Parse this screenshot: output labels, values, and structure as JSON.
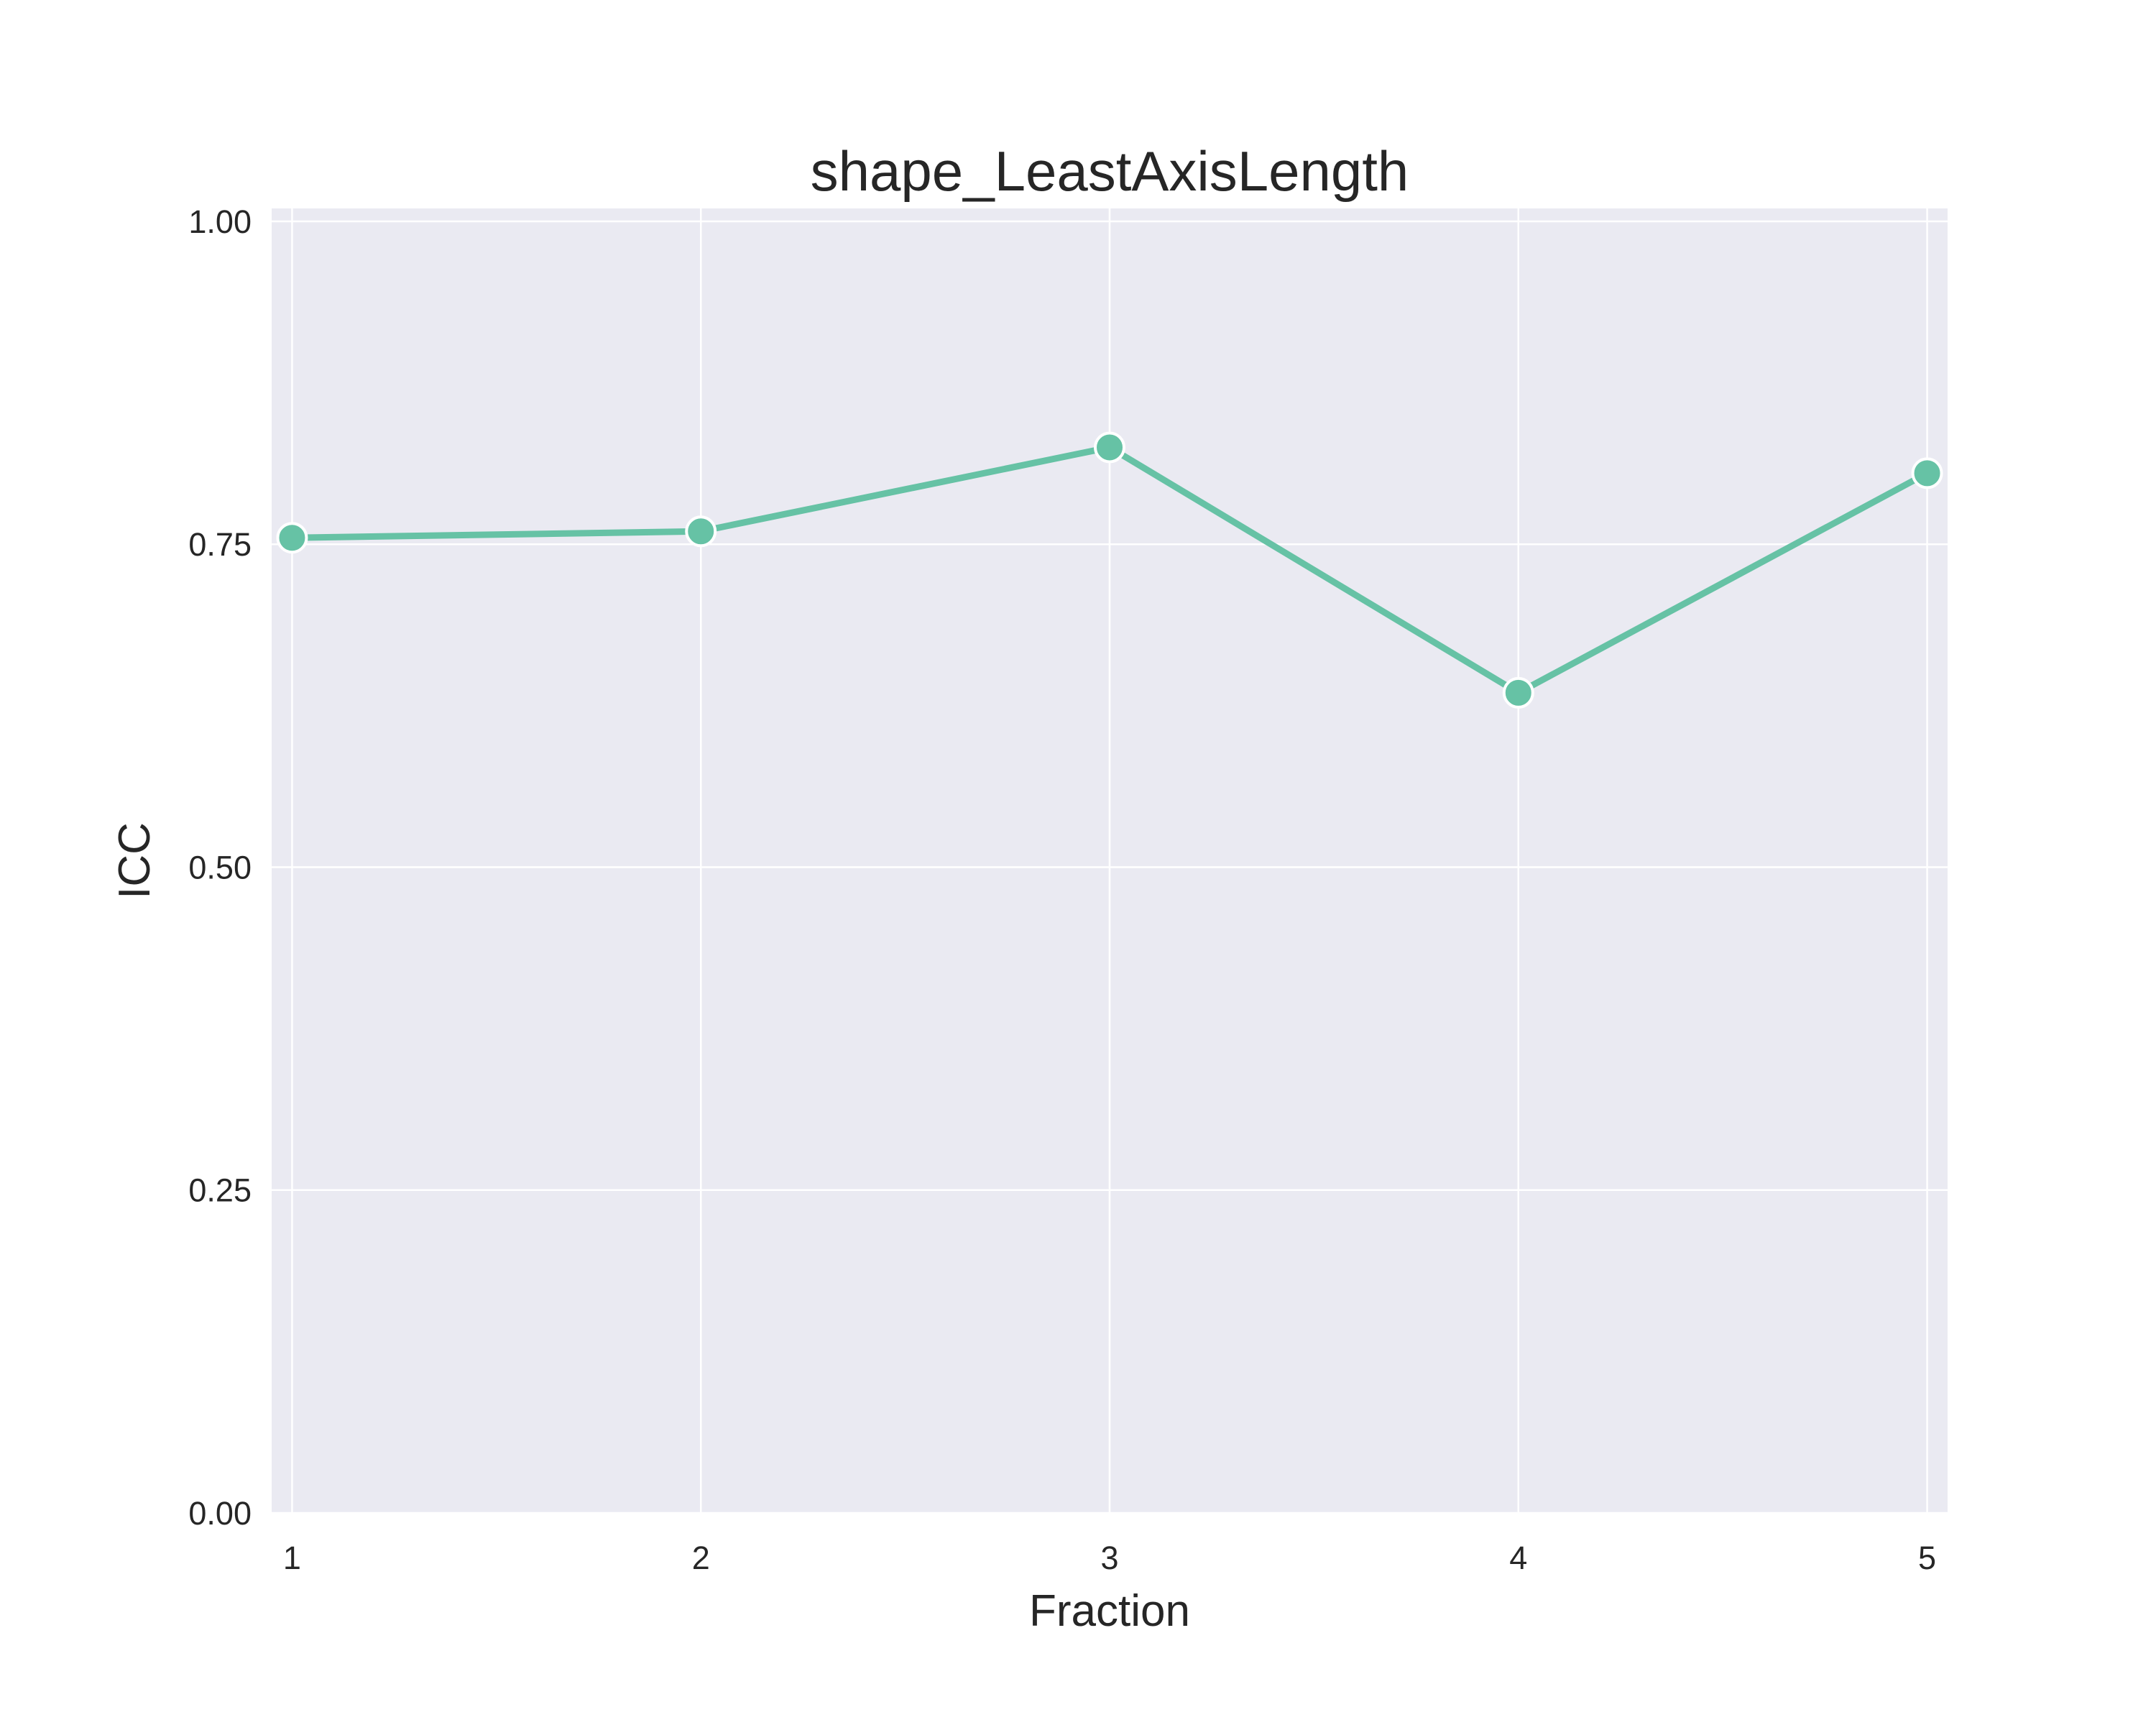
{
  "chart_data": {
    "type": "line",
    "title": "shape_LeastAxisLength",
    "xlabel": "Fraction",
    "ylabel": "ICC",
    "x": [
      1,
      2,
      3,
      4,
      5
    ],
    "series": [
      {
        "values": [
          0.755,
          0.76,
          0.825,
          0.635,
          0.805
        ]
      }
    ],
    "xlim": [
      0.95,
      5.05
    ],
    "ylim": [
      0,
      1.01
    ],
    "xticks": [
      "1",
      "2",
      "3",
      "4",
      "5"
    ],
    "yticks": [
      "0.00",
      "0.25",
      "0.50",
      "0.75",
      "1.00"
    ],
    "grid": true,
    "colors": {
      "line": "#66c2a5",
      "plot_background": "#eaeaf2",
      "grid": "#ffffff",
      "marker_edge": "#ffffff"
    }
  }
}
